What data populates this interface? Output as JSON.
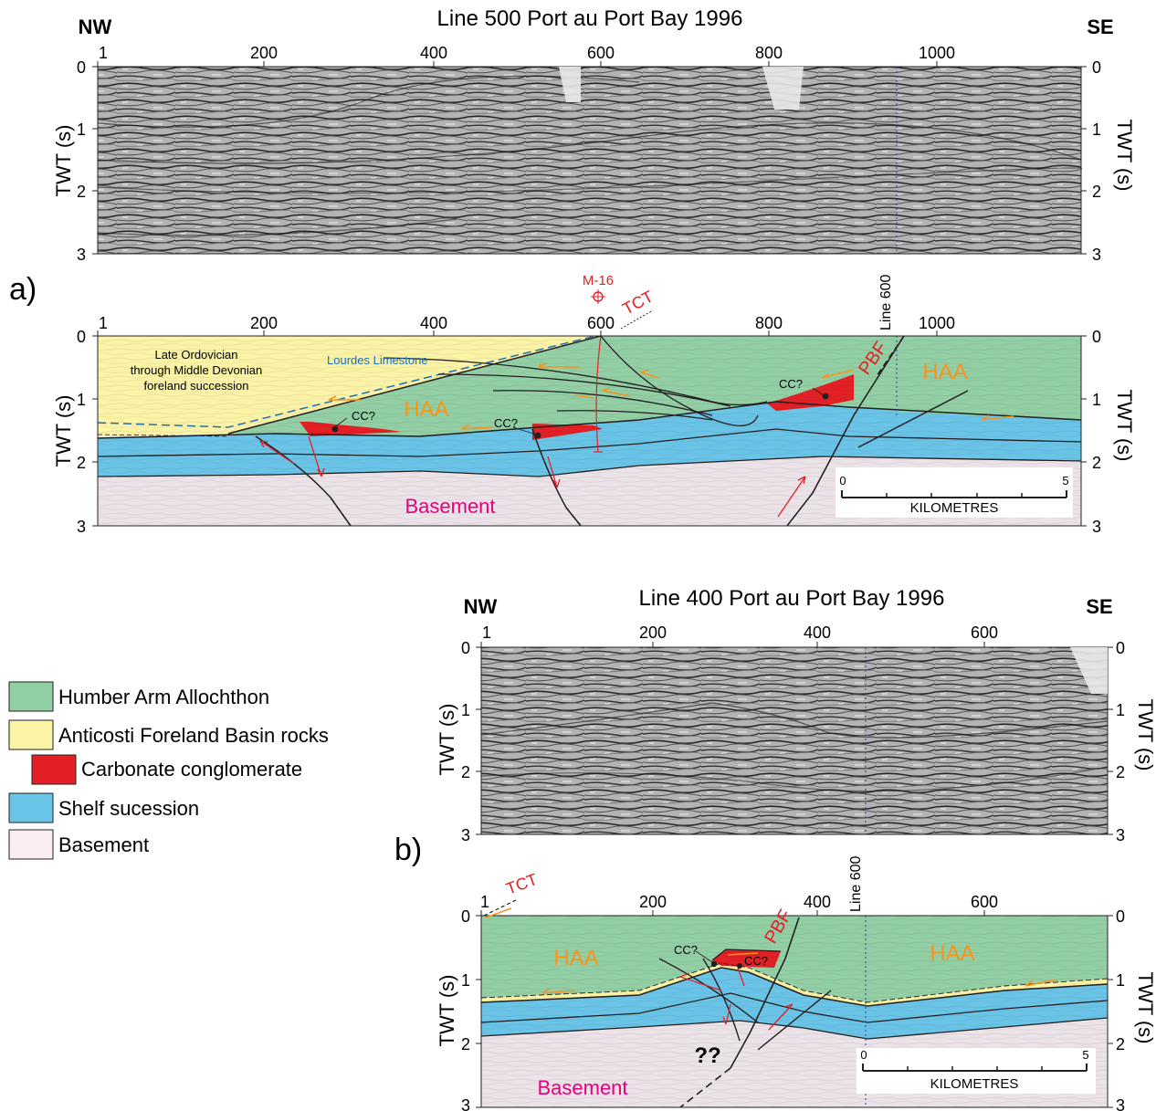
{
  "panel_a": {
    "letter": "a)",
    "title": "Line 500 Port au Port Bay 1996",
    "left_dir": "NW",
    "right_dir": "SE",
    "cdp_ticks": [
      "1",
      "200",
      "400",
      "600",
      "800",
      "1000"
    ],
    "twt_ticks": [
      "0",
      "1",
      "2",
      "3"
    ],
    "axis_label": "TWT (s)",
    "well": "M-16",
    "tct": "TCT",
    "crossline": "Line 600",
    "pbf": "PBF",
    "haa": "HAA",
    "cc": "CC?",
    "foreland_note": [
      "Late Ordovician",
      "through Middle Devonian",
      "foreland succession"
    ],
    "lourdes": "Lourdes Limestone",
    "basement": "Basement",
    "scale": {
      "min": "0",
      "max": "5",
      "unit": "KILOMETRES"
    }
  },
  "panel_b": {
    "letter": "b)",
    "title": "Line 400 Port au Port Bay 1996",
    "left_dir": "NW",
    "right_dir": "SE",
    "cdp_ticks": [
      "1",
      "200",
      "400",
      "600"
    ],
    "twt_ticks": [
      "0",
      "1",
      "2",
      "3"
    ],
    "axis_label": "TWT (s)",
    "tct": "TCT",
    "crossline": "Line 600",
    "pbf": "PBF",
    "haa": "HAA",
    "cc": "CC?",
    "unknown": "??",
    "basement": "Basement",
    "scale": {
      "min": "0",
      "max": "5",
      "unit": "KILOMETRES"
    }
  },
  "legend": [
    {
      "label": "Humber Arm Allochthon",
      "color": "#93cfa5"
    },
    {
      "label": "Anticosti Foreland Basin rocks",
      "color": "#fbf3a6"
    },
    {
      "label": "Carbonate conglomerate",
      "color": "#e32026"
    },
    {
      "label": "Shelf sucession",
      "color": "#6ac4e7"
    },
    {
      "label": "Basement",
      "color": "#fbeef2"
    }
  ],
  "colors": {
    "haa": "#93cfa5",
    "foreland": "#fbf3a6",
    "conglomerate": "#e32026",
    "shelf": "#6ac4e7",
    "basement": "#ece3e8",
    "annotation_red": "#e32026",
    "haa_label": "#f7941d",
    "lourdes_blue": "#1f6fb5",
    "basement_label": "#e6007e"
  }
}
